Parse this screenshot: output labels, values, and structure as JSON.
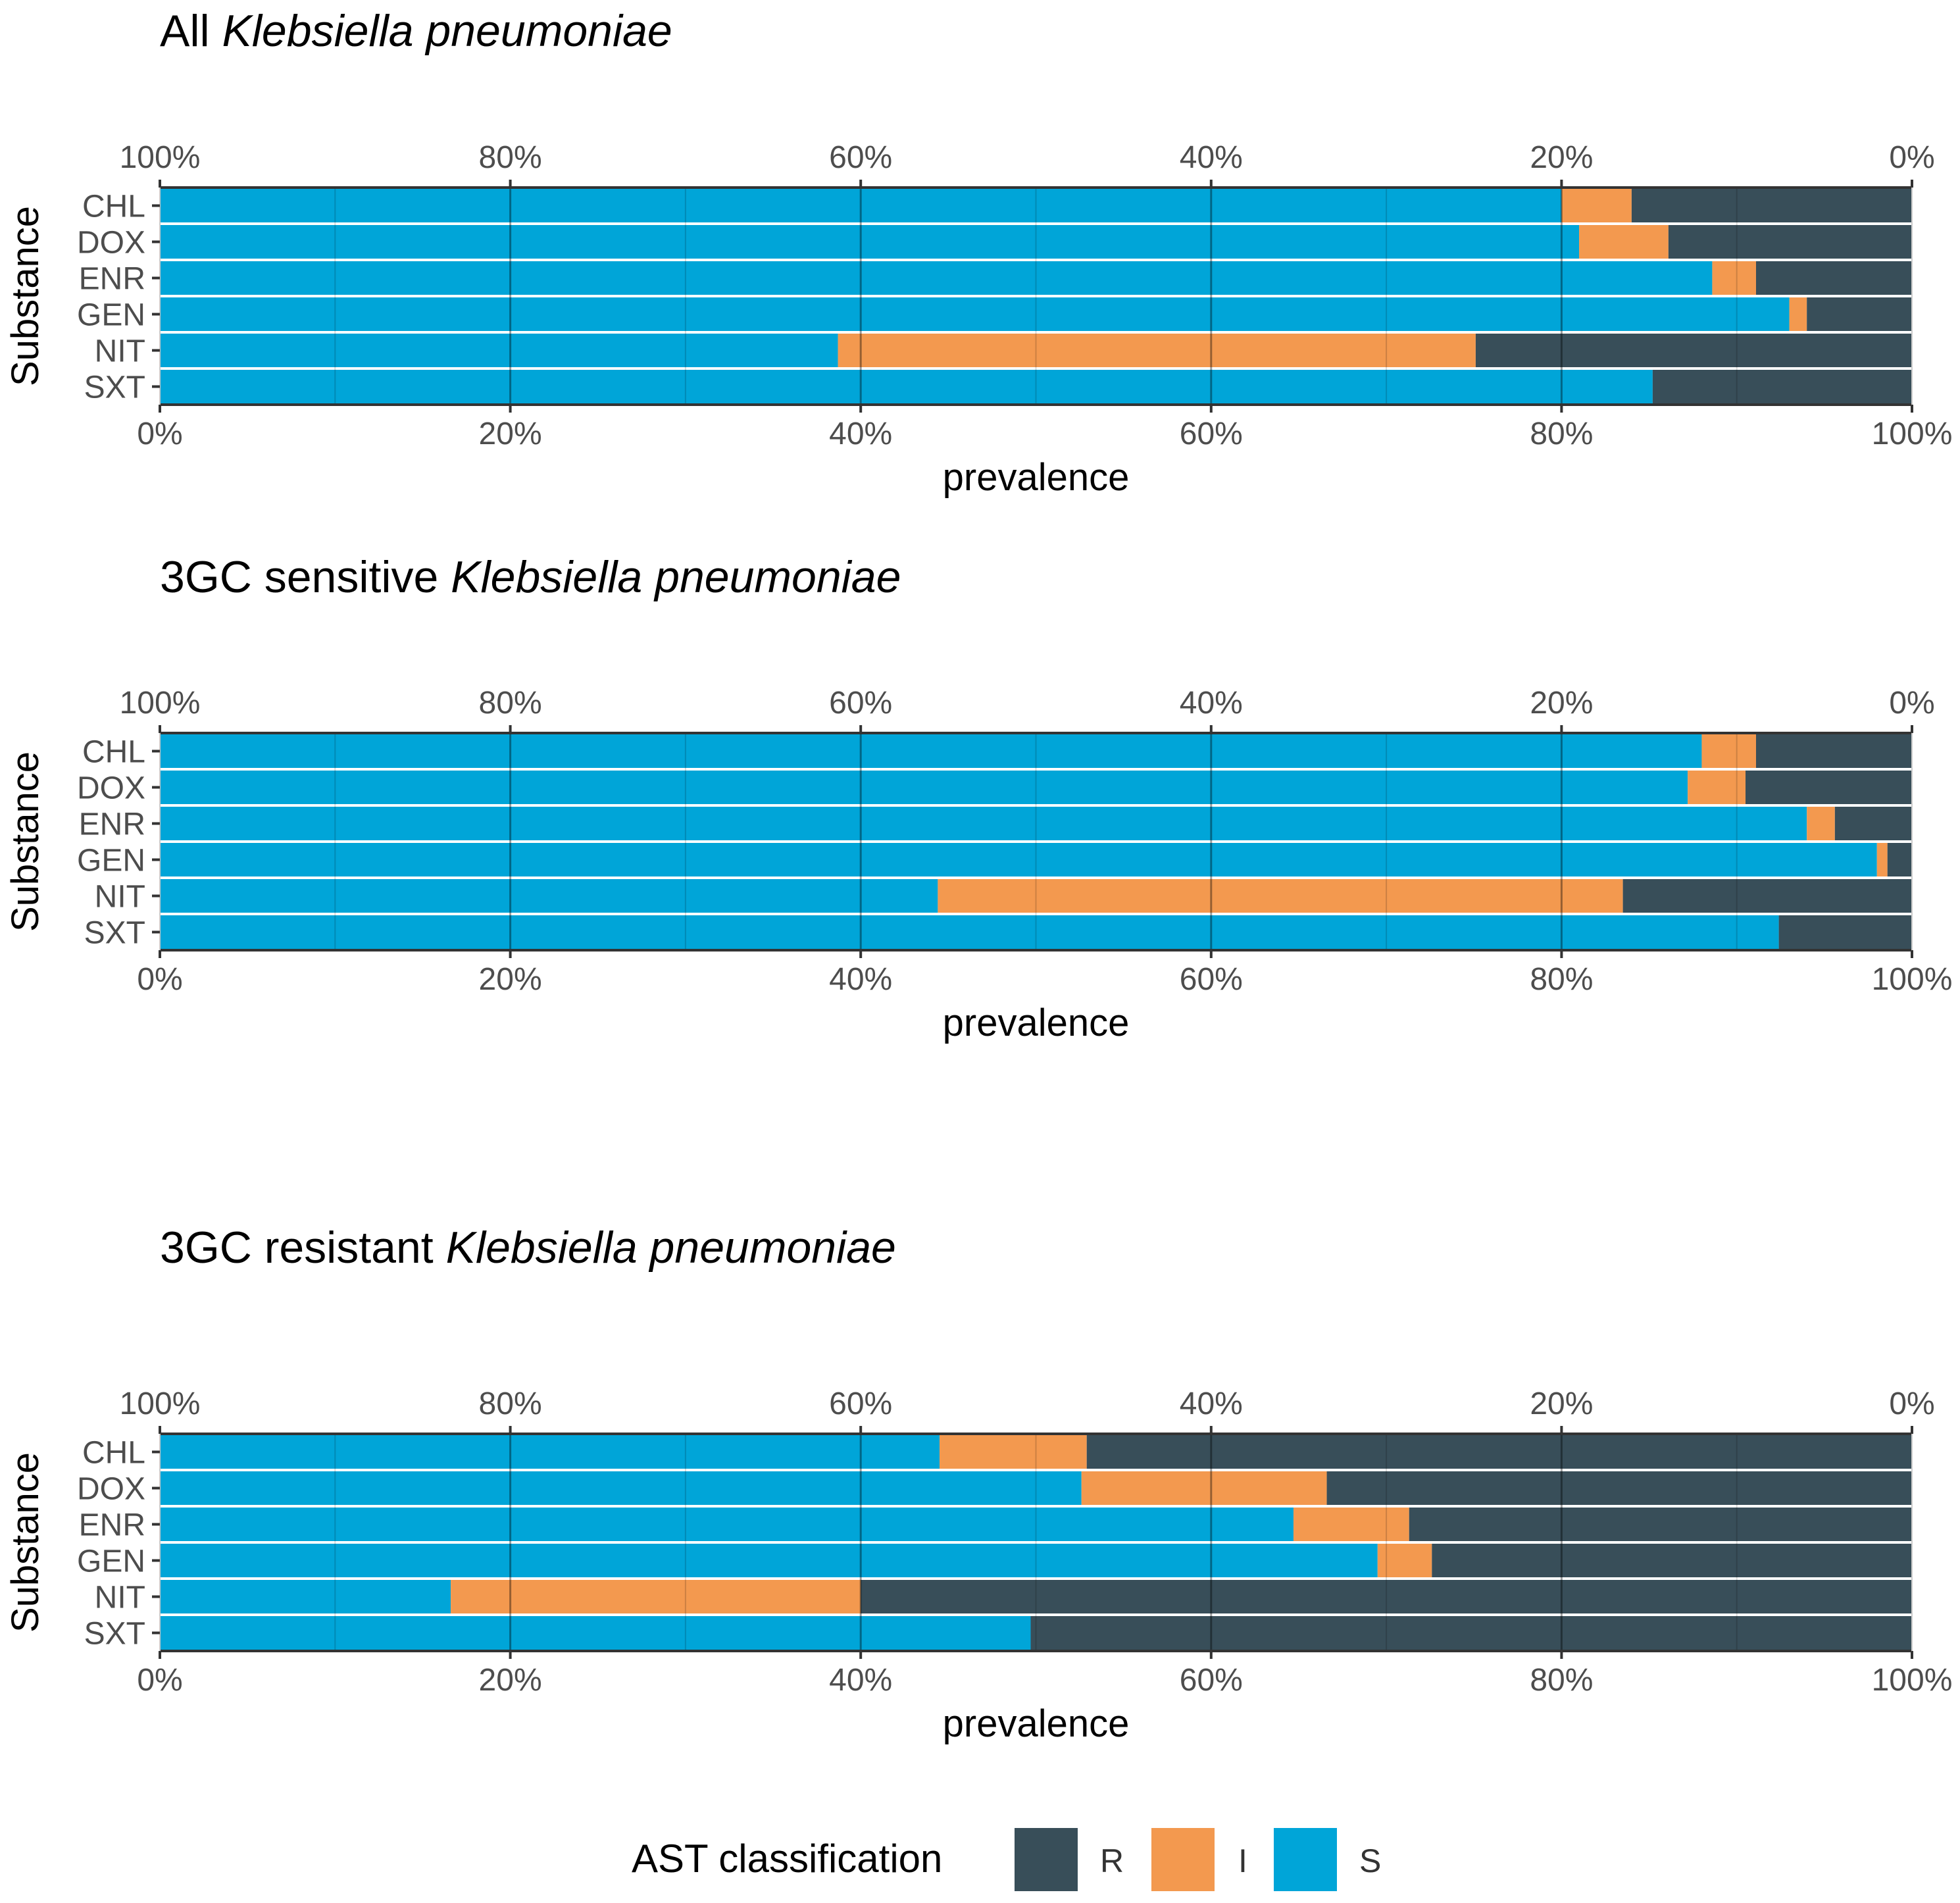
{
  "chart_data": [
    {
      "type": "bar",
      "orientation": "horizontal",
      "stacked": true,
      "title_prefix": "All ",
      "title_italic": "Klebsiella pneumoniae",
      "categories": [
        "CHL",
        "DOX",
        "ENR",
        "GEN",
        "NIT",
        "SXT"
      ],
      "series": [
        {
          "name": "S",
          "values": [
            80.0,
            81.0,
            88.6,
            93.0,
            38.7,
            85.2
          ]
        },
        {
          "name": "I",
          "values": [
            4.0,
            5.1,
            2.5,
            1.0,
            36.4,
            0.0
          ]
        },
        {
          "name": "R",
          "values": [
            16.0,
            13.9,
            8.9,
            6.0,
            24.9,
            14.8
          ]
        }
      ],
      "xlabel": "prevalence",
      "ylabel": "Substance",
      "xlim": [
        0,
        100
      ],
      "bottom_ticks": [
        "0%",
        "20%",
        "40%",
        "60%",
        "80%",
        "100%"
      ],
      "top_ticks": [
        "100%",
        "80%",
        "60%",
        "40%",
        "20%",
        "0%"
      ]
    },
    {
      "type": "bar",
      "orientation": "horizontal",
      "stacked": true,
      "title_prefix": "3GC sensitive ",
      "title_italic": "Klebsiella pneumoniae",
      "categories": [
        "CHL",
        "DOX",
        "ENR",
        "GEN",
        "NIT",
        "SXT"
      ],
      "series": [
        {
          "name": "S",
          "values": [
            88.0,
            87.2,
            94.0,
            98.0,
            44.4,
            92.4
          ]
        },
        {
          "name": "I",
          "values": [
            3.1,
            3.3,
            1.6,
            0.6,
            39.1,
            0.0
          ]
        },
        {
          "name": "R",
          "values": [
            8.9,
            9.5,
            4.4,
            1.4,
            16.5,
            7.6
          ]
        }
      ],
      "xlabel": "prevalence",
      "ylabel": "Substance",
      "xlim": [
        0,
        100
      ],
      "bottom_ticks": [
        "0%",
        "20%",
        "40%",
        "60%",
        "80%",
        "100%"
      ],
      "top_ticks": [
        "100%",
        "80%",
        "60%",
        "40%",
        "20%",
        "0%"
      ]
    },
    {
      "type": "bar",
      "orientation": "horizontal",
      "stacked": true,
      "title_prefix": "3GC resistant ",
      "title_italic": "Klebsiella pneumoniae",
      "categories": [
        "CHL",
        "DOX",
        "ENR",
        "GEN",
        "NIT",
        "SXT"
      ],
      "series": [
        {
          "name": "S",
          "values": [
            44.5,
            52.6,
            64.7,
            69.5,
            16.6,
            49.7
          ]
        },
        {
          "name": "I",
          "values": [
            8.4,
            14.0,
            6.6,
            3.1,
            23.4,
            0.0
          ]
        },
        {
          "name": "R",
          "values": [
            47.1,
            33.4,
            28.7,
            27.4,
            60.0,
            50.3
          ]
        }
      ],
      "xlabel": "prevalence",
      "ylabel": "Substance",
      "xlim": [
        0,
        100
      ],
      "bottom_ticks": [
        "0%",
        "20%",
        "40%",
        "60%",
        "80%",
        "100%"
      ],
      "top_ticks": [
        "100%",
        "80%",
        "60%",
        "40%",
        "20%",
        "0%"
      ]
    }
  ],
  "legend": {
    "title": "AST classification",
    "items": [
      {
        "label": "R",
        "color": "#384e59"
      },
      {
        "label": "I",
        "color": "#f3994f"
      },
      {
        "label": "S",
        "color": "#00a5d8"
      }
    ]
  },
  "colors": {
    "S": "#00a5d8",
    "I": "#f3994f",
    "R": "#384e59"
  }
}
